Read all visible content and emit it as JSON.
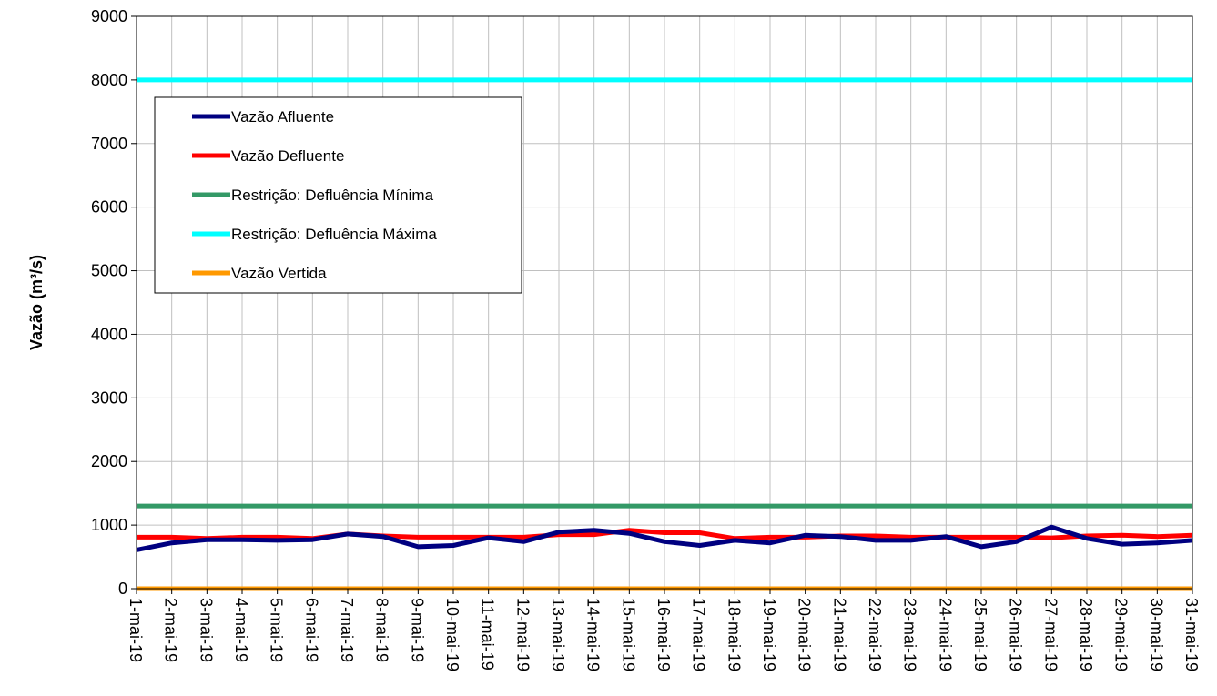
{
  "chart_data": {
    "type": "line",
    "title": "",
    "xlabel": "",
    "ylabel": "Vazão (m³/s)",
    "ylim": [
      0,
      9000
    ],
    "yticks": [
      "0",
      "1000",
      "2000",
      "3000",
      "4000",
      "5000",
      "6000",
      "7000",
      "8000",
      "9000"
    ],
    "grid": true,
    "legend_position": "top-left",
    "categories": [
      "1-mai-19",
      "2-mai-19",
      "3-mai-19",
      "4-mai-19",
      "5-mai-19",
      "6-mai-19",
      "7-mai-19",
      "8-mai-19",
      "9-mai-19",
      "10-mai-19",
      "11-mai-19",
      "12-mai-19",
      "13-mai-19",
      "14-mai-19",
      "15-mai-19",
      "16-mai-19",
      "17-mai-19",
      "18-mai-19",
      "19-mai-19",
      "20-mai-19",
      "21-mai-19",
      "22-mai-19",
      "23-mai-19",
      "24-mai-19",
      "25-mai-19",
      "26-mai-19",
      "27-mai-19",
      "28-mai-19",
      "29-mai-19",
      "30-mai-19",
      "31-mai-19"
    ],
    "series": [
      {
        "name": "Vazão Afluente",
        "color": "#000080",
        "values": [
          610,
          720,
          770,
          770,
          760,
          770,
          860,
          820,
          660,
          680,
          800,
          740,
          890,
          920,
          870,
          740,
          680,
          760,
          720,
          840,
          820,
          760,
          760,
          820,
          660,
          740,
          970,
          790,
          700,
          720,
          760
        ]
      },
      {
        "name": "Vazão Defluente",
        "color": "#ff0000",
        "values": [
          810,
          810,
          790,
          810,
          810,
          790,
          860,
          830,
          810,
          810,
          810,
          810,
          850,
          850,
          920,
          880,
          880,
          790,
          810,
          810,
          830,
          830,
          810,
          810,
          810,
          810,
          800,
          830,
          840,
          820,
          840
        ]
      },
      {
        "name": "Restrição: Defluência Mínima",
        "color": "#339966",
        "values": [
          1300,
          1300,
          1300,
          1300,
          1300,
          1300,
          1300,
          1300,
          1300,
          1300,
          1300,
          1300,
          1300,
          1300,
          1300,
          1300,
          1300,
          1300,
          1300,
          1300,
          1300,
          1300,
          1300,
          1300,
          1300,
          1300,
          1300,
          1300,
          1300,
          1300,
          1300
        ]
      },
      {
        "name": "Restrição: Defluência Máxima",
        "color": "#00ffff",
        "values": [
          8000,
          8000,
          8000,
          8000,
          8000,
          8000,
          8000,
          8000,
          8000,
          8000,
          8000,
          8000,
          8000,
          8000,
          8000,
          8000,
          8000,
          8000,
          8000,
          8000,
          8000,
          8000,
          8000,
          8000,
          8000,
          8000,
          8000,
          8000,
          8000,
          8000,
          8000
        ]
      },
      {
        "name": "Vazão Vertida",
        "color": "#ff9900",
        "values": [
          0,
          0,
          0,
          0,
          0,
          0,
          0,
          0,
          0,
          0,
          0,
          0,
          0,
          0,
          0,
          0,
          0,
          0,
          0,
          0,
          0,
          0,
          0,
          0,
          0,
          0,
          0,
          0,
          0,
          0,
          0
        ]
      }
    ]
  }
}
